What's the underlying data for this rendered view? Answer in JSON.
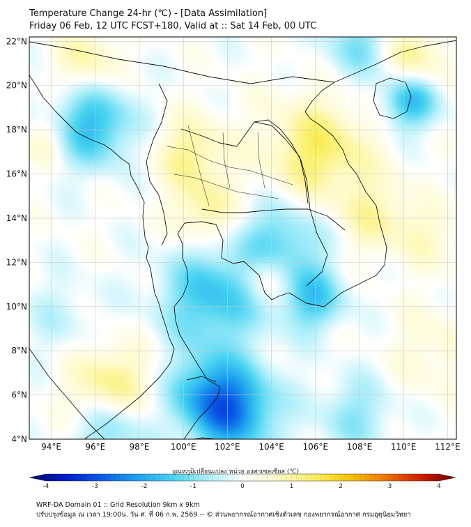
{
  "title": {
    "line1": "Temperature Change 24-hr (℃) - [Data Assimilation]",
    "line2": "Friday 06 Feb, 12 UTC FCST+180, Valid at :: Sat 14 Feb, 00 UTC"
  },
  "axes": {
    "lat_labels": [
      "22°N",
      "20°N",
      "18°N",
      "16°N",
      "14°N",
      "12°N",
      "10°N",
      "8°N",
      "6°N",
      "4°N"
    ],
    "lon_labels": [
      "94°E",
      "96°E",
      "98°E",
      "100°E",
      "102°E",
      "104°E",
      "106°E",
      "108°E",
      "110°E",
      "112°E"
    ],
    "lat_values": [
      22,
      20,
      18,
      16,
      14,
      12,
      10,
      8,
      6,
      4
    ],
    "lon_values": [
      94,
      96,
      98,
      100,
      102,
      104,
      106,
      108,
      110,
      112
    ],
    "lon_range": [
      93,
      112.4
    ],
    "lat_range": [
      4,
      22.2
    ],
    "grid": true
  },
  "colorbar": {
    "title": "อุณหภูมิเปลี่ยนแปลง หน่วย องศาเซลเซียส (℃)",
    "ticks": [
      "-4",
      "-3",
      "-2",
      "-1",
      "0",
      "1",
      "2",
      "3",
      "4"
    ],
    "min": -4,
    "max": 4,
    "colors": [
      "#000a6e",
      "#0019c8",
      "#0a5ae6",
      "#1ea0f0",
      "#46d2f0",
      "#aaeefa",
      "#ffffff",
      "#fffac8",
      "#faf064",
      "#f5c800",
      "#f07800",
      "#d21e00",
      "#6e0000"
    ]
  },
  "footer": {
    "line1": "WRF-DA Domain 01 :: Grid Resolution 9km x 9km",
    "line2": "ปรับปรุงข้อมูล ณ เวลา 19:00น. วัน ศ. ที่ 06 ก.พ. 2569 -- © ส่วนพยากรณ์อากาศเชิงตัวเลข กองพยากรณ์อากาศ กรมอุตุนิยมวิทยา"
  },
  "field_blobs": [
    {
      "lon": 95.9,
      "lat": 18.2,
      "value": -1.6,
      "sigma": 1.3
    },
    {
      "lon": 101.3,
      "lat": 10.4,
      "value": -1.5,
      "sigma": 1.6
    },
    {
      "lon": 102.2,
      "lat": 5.3,
      "value": -2.2,
      "sigma": 1.4
    },
    {
      "lon": 104.5,
      "lat": 12.9,
      "value": -1.2,
      "sigma": 1.4
    },
    {
      "lon": 105.9,
      "lat": 10.3,
      "value": -1.3,
      "sigma": 1.0
    },
    {
      "lon": 110.3,
      "lat": 19.3,
      "value": -1.6,
      "sigma": 0.9
    },
    {
      "lon": 96.7,
      "lat": 4.5,
      "value": -1.1,
      "sigma": 1.1
    },
    {
      "lon": 108.0,
      "lat": 21.8,
      "value": -0.9,
      "sigma": 1.2
    },
    {
      "lon": 100.9,
      "lat": 6.2,
      "value": -1.0,
      "sigma": 1.2
    },
    {
      "lon": 106.1,
      "lat": 17.0,
      "value": 1.3,
      "sigma": 1.7
    },
    {
      "lon": 100.4,
      "lat": 16.9,
      "value": 1.0,
      "sigma": 1.2
    },
    {
      "lon": 101.0,
      "lat": 14.2,
      "value": 1.0,
      "sigma": 1.0
    },
    {
      "lon": 96.7,
      "lat": 6.4,
      "value": 1.2,
      "sigma": 1.3
    },
    {
      "lon": 110.4,
      "lat": 21.3,
      "value": 1.1,
      "sigma": 1.0
    },
    {
      "lon": 103.8,
      "lat": 11.3,
      "value": 0.9,
      "sigma": 0.8
    },
    {
      "lon": 95.6,
      "lat": 21.1,
      "value": 0.9,
      "sigma": 1.0
    },
    {
      "lon": 111.5,
      "lat": 8.0,
      "value": 0.5,
      "sigma": 1.4
    },
    {
      "lon": 108.9,
      "lat": 14.0,
      "value": 0.8,
      "sigma": 1.2
    },
    {
      "lon": 93.7,
      "lat": 17.5,
      "value": 0.6,
      "sigma": 0.8
    },
    {
      "lon": 94.4,
      "lat": 9.5,
      "value": -0.4,
      "sigma": 1.3
    },
    {
      "lon": 107.8,
      "lat": 5.1,
      "value": -0.8,
      "sigma": 1.2
    },
    {
      "lon": 111.3,
      "lat": 13.0,
      "value": 0.5,
      "sigma": 1.0
    }
  ]
}
